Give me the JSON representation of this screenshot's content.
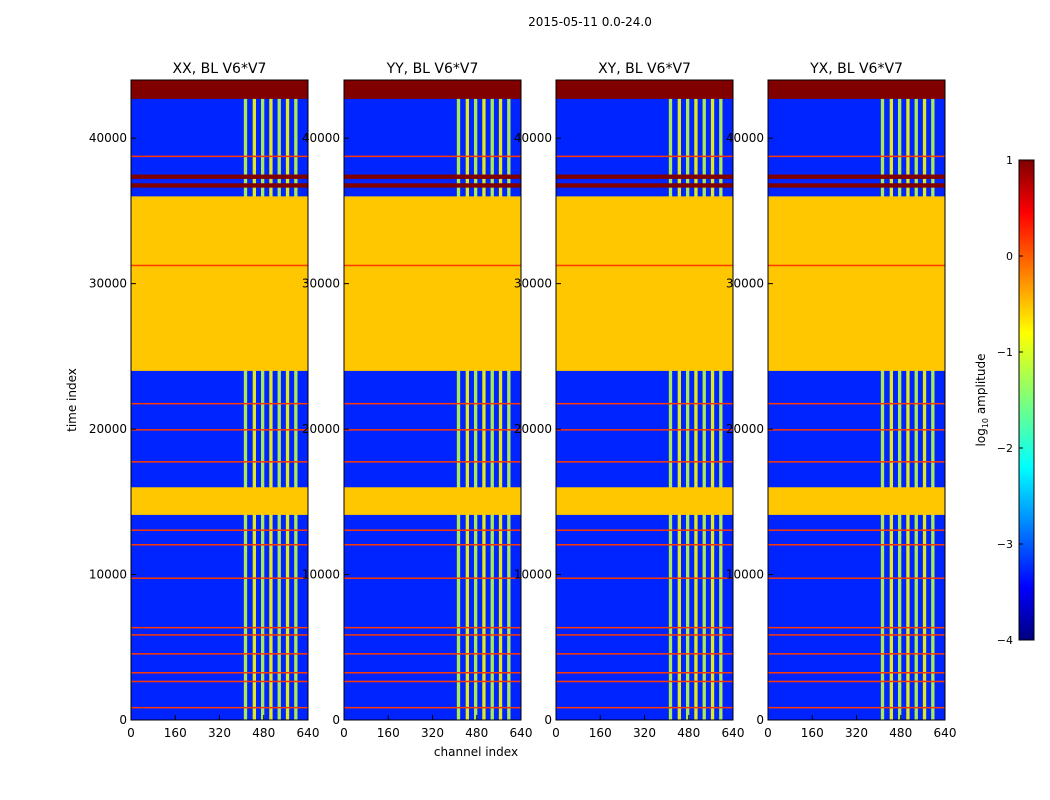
{
  "figure": {
    "suptitle": "2015-05-11 0.0-24.0"
  },
  "chart_data": {
    "type": "heatmap",
    "xlabel": "channel index",
    "ylabel": "time index",
    "xlim": [
      0,
      640
    ],
    "ylim": [
      0,
      44000
    ],
    "xticks": [
      "0",
      "160",
      "320",
      "480",
      "640"
    ],
    "yticks": [
      "0",
      "10000",
      "20000",
      "30000",
      "40000"
    ],
    "panels": [
      {
        "title": "XX, BL V6*V7"
      },
      {
        "title": "YY, BL V6*V7"
      },
      {
        "title": "XY, BL V6*V7"
      },
      {
        "title": "YX, BL V6*V7"
      }
    ],
    "colorbar": {
      "label": "log10 amplitude",
      "range": [
        -4,
        1
      ],
      "ticks": [
        "1",
        "0",
        "−1",
        "−2",
        "−3",
        "−4"
      ],
      "colormap": "jet"
    },
    "structure": {
      "flagged_bands_log_amp": -0.6,
      "flagged_bands": [
        [
          14100,
          16000
        ],
        [
          24000,
          36000
        ]
      ],
      "saturated_bands_log_amp": 1.0,
      "saturated_bands": [
        [
          42700,
          44000
        ],
        [
          37200,
          37500
        ],
        [
          36600,
          36900
        ]
      ],
      "rfi_channel_range": [
        408,
        600
      ],
      "rfi_channels": [
        408,
        440,
        470,
        500,
        530,
        560,
        590
      ],
      "background_log_amp": -3.2,
      "narrow_rfi_rows": [
        900,
        2700,
        3300,
        4600,
        5900,
        6400,
        9800,
        12100,
        13100,
        17800,
        20000,
        21800,
        31300,
        38800
      ]
    }
  }
}
